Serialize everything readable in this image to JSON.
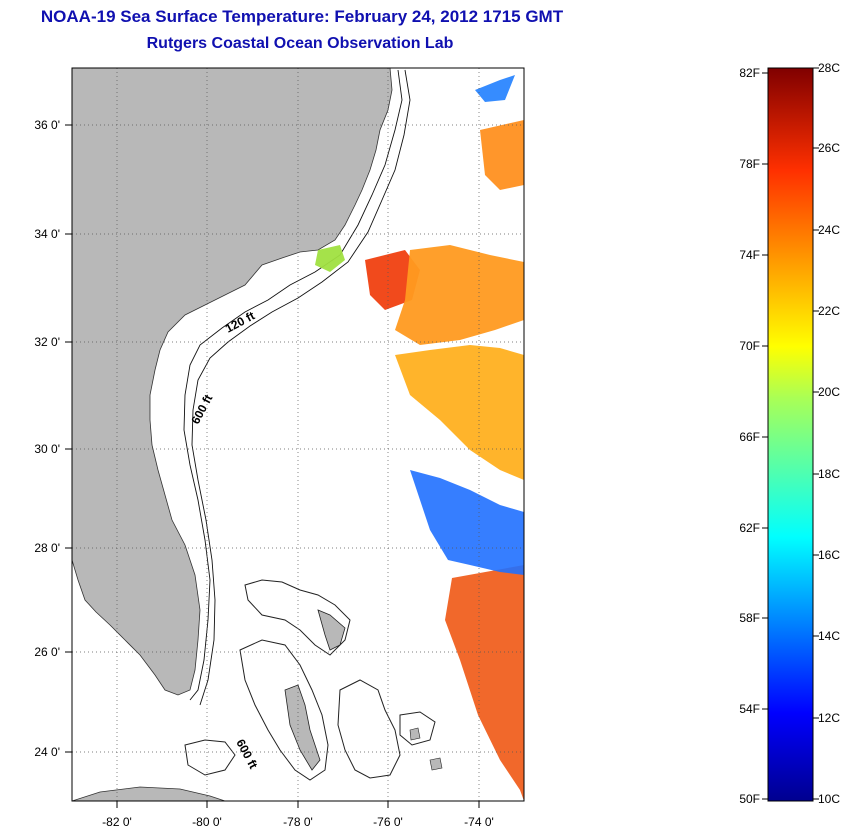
{
  "header": {
    "title": "NOAA-19 Sea Surface Temperature:  February 24, 2012 1715 GMT",
    "subtitle": "Rutgers Coastal Ocean Observation Lab"
  },
  "map": {
    "lon_ticks": [
      "-82 0'",
      "-80 0'",
      "-78 0'",
      "-76 0'",
      "-74 0'"
    ],
    "lat_ticks": [
      "36 0'",
      "34 0'",
      "32 0'",
      "30 0'",
      "28 0'",
      "26 0'",
      "24 0'"
    ],
    "contour_labels": [
      "120 ft",
      "600 ft",
      "600 ft"
    ],
    "land_color": "#b8b8b8",
    "sea_color": "#ffffff"
  },
  "colorbar": {
    "fahrenheit_ticks": [
      "82F",
      "78F",
      "74F",
      "70F",
      "66F",
      "62F",
      "58F",
      "54F",
      "50F"
    ],
    "celsius_ticks": [
      "28C",
      "26C",
      "24C",
      "22C",
      "20C",
      "18C",
      "16C",
      "14C",
      "12C",
      "10C"
    ],
    "range_c": [
      10,
      28
    ]
  }
}
